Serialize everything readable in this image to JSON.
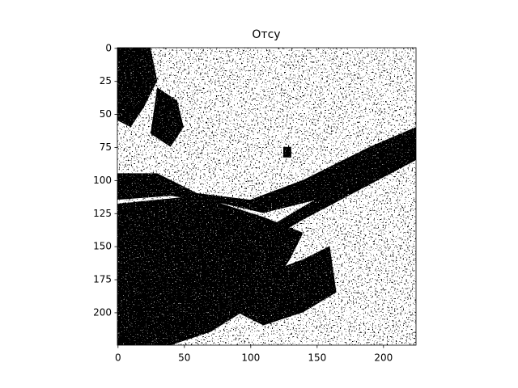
{
  "chart_data": {
    "type": "image",
    "title": "Отсу",
    "xlim": [
      -0.5,
      224.5
    ],
    "ylim": [
      224.5,
      -0.5
    ],
    "xticks": [
      0,
      50,
      100,
      150,
      200
    ],
    "yticks": [
      0,
      25,
      50,
      75,
      100,
      125,
      150,
      175,
      200
    ]
  }
}
